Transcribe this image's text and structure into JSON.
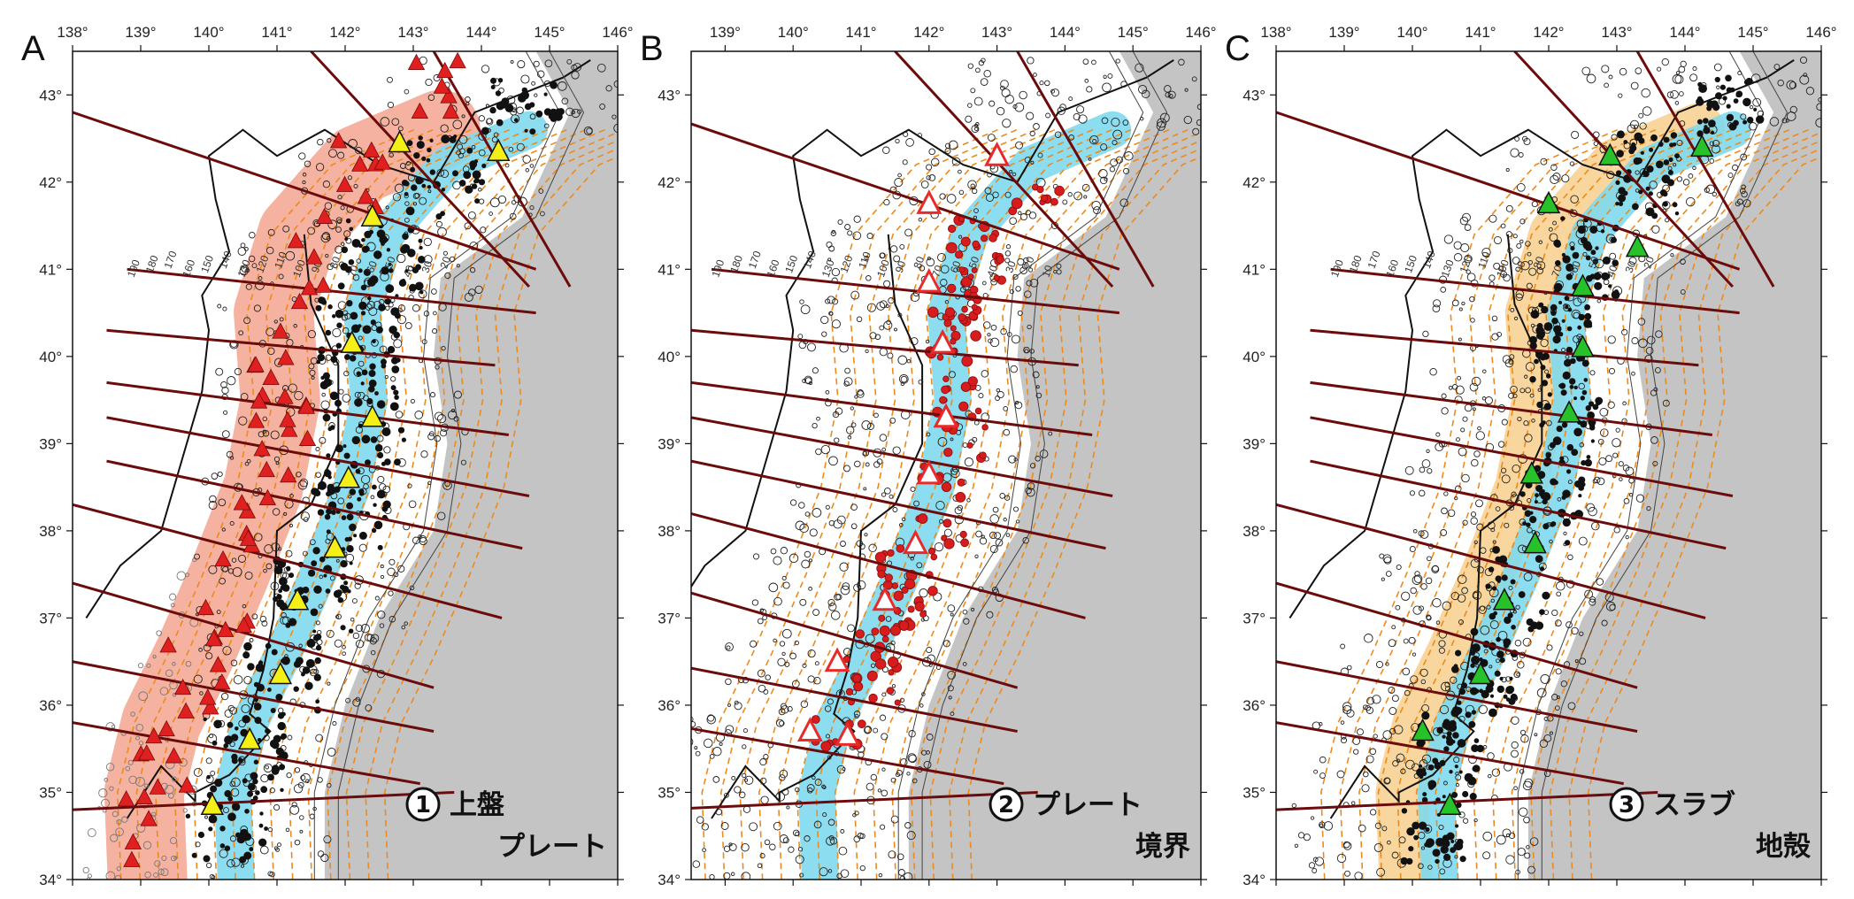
{
  "panels": [
    {
      "letter": "A",
      "circled_number": "1",
      "label_lines": [
        "上盤",
        "プレート"
      ],
      "triangle_color": "#f4ef16",
      "band_color": "#7fd9ee",
      "side_band_color": "#f3a48f",
      "volcanoes_upper": "#e02020",
      "x_ticks": [
        "138°",
        "139°",
        "140°",
        "141°",
        "142°",
        "143°",
        "144°",
        "145°",
        "146°"
      ],
      "y_ticks": [
        "43°",
        "42°",
        "41°",
        "40°",
        "39°",
        "38°",
        "37°",
        "36°",
        "35°",
        "34°"
      ],
      "contour_labels": [
        "190",
        "180",
        "170",
        "160",
        "150",
        "140",
        "130",
        "120",
        "110",
        "100",
        "90",
        "80",
        "70",
        "60",
        "50",
        "40",
        "30",
        "20"
      ],
      "main_triangles": [
        [
          142.8,
          42.45
        ],
        [
          144.25,
          42.35
        ],
        [
          142.4,
          41.6
        ],
        [
          142.1,
          40.15
        ],
        [
          142.4,
          39.3
        ],
        [
          142.05,
          38.6
        ],
        [
          141.85,
          37.8
        ],
        [
          141.3,
          37.2
        ],
        [
          141.05,
          36.35
        ],
        [
          140.6,
          35.6
        ],
        [
          140.05,
          34.85
        ]
      ]
    },
    {
      "letter": "B",
      "circled_number": "2",
      "label_lines": [
        "プレート",
        "境界"
      ],
      "triangle_color": "#ffffff",
      "triangle_outline": "#e82a2a",
      "band_color": "#7fd9ee",
      "x_ticks": [
        "139°",
        "140°",
        "141°",
        "142°",
        "143°",
        "144°",
        "145°",
        "146°"
      ],
      "y_ticks": [
        "43°",
        "42°",
        "41°",
        "40°",
        "39°",
        "38°",
        "37°",
        "36°",
        "35°",
        "34°"
      ],
      "contour_labels": [
        "190",
        "180",
        "170",
        "160",
        "150",
        "140",
        "130",
        "120",
        "110",
        "100",
        "90",
        "80",
        "70",
        "60",
        "50",
        "40",
        "30",
        "20",
        "10"
      ],
      "main_triangles": [
        [
          143.0,
          42.3
        ],
        [
          142.0,
          41.75
        ],
        [
          142.0,
          40.85
        ],
        [
          142.2,
          40.15
        ],
        [
          142.25,
          39.3
        ],
        [
          142.0,
          38.65
        ],
        [
          141.8,
          37.85
        ],
        [
          141.35,
          37.2
        ],
        [
          140.65,
          36.5
        ],
        [
          140.25,
          35.7
        ],
        [
          140.8,
          35.65
        ]
      ]
    },
    {
      "letter": "C",
      "circled_number": "3",
      "label_lines": [
        "スラブ",
        "地殻"
      ],
      "triangle_color": "#27c22a",
      "band_color": "#7fd9ee",
      "side_band_color": "#f7cf8c",
      "x_ticks": [
        "138°",
        "139°",
        "140°",
        "141°",
        "142°",
        "143°",
        "144°",
        "145°",
        "146°"
      ],
      "y_ticks": [
        "43°",
        "42°",
        "41°",
        "40°",
        "39°",
        "38°",
        "37°",
        "36°",
        "35°",
        "34°"
      ],
      "contour_labels": [
        "190",
        "180",
        "170",
        "160",
        "150",
        "140",
        "130",
        "120",
        "110",
        "100",
        "90",
        "80",
        "70",
        "60",
        "50",
        "40",
        "30",
        "20"
      ],
      "main_triangles": [
        [
          142.9,
          42.3
        ],
        [
          144.25,
          42.4
        ],
        [
          142.0,
          41.75
        ],
        [
          143.3,
          41.25
        ],
        [
          142.5,
          40.8
        ],
        [
          142.5,
          40.1
        ],
        [
          142.3,
          39.35
        ],
        [
          141.75,
          38.65
        ],
        [
          141.8,
          37.85
        ],
        [
          141.35,
          37.2
        ],
        [
          141.0,
          36.35
        ],
        [
          140.15,
          35.7
        ],
        [
          140.55,
          34.85
        ]
      ]
    }
  ],
  "colors": {
    "ocean_gray": "#c4c4c4",
    "contour_orange": "#ee8a1a",
    "profile_line": "#6b0b0b",
    "coast": "#111111",
    "event_red": "#d61c1c"
  }
}
